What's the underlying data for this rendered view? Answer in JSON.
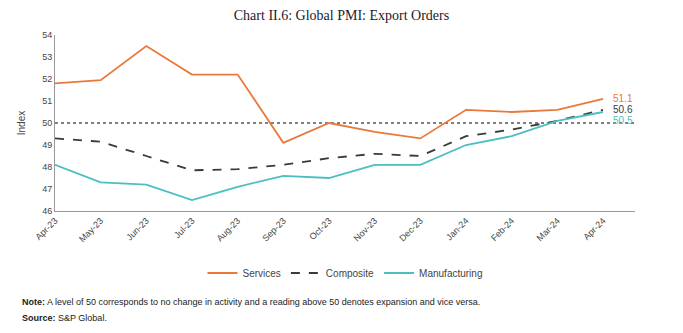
{
  "chart_data": {
    "type": "line",
    "title": "Chart II.6: Global PMI: Export Orders",
    "ylabel": "Index",
    "categories": [
      "Apr-23",
      "May-23",
      "Jun-23",
      "Jul-23",
      "Aug-23",
      "Sep-23",
      "Oct-23",
      "Nov-23",
      "Dec-23",
      "Jan-24",
      "Feb-24",
      "Mar-24",
      "Apr-24"
    ],
    "series": [
      {
        "name": "Services",
        "color": "#E8793A",
        "line_style": "solid",
        "values": [
          51.8,
          51.95,
          53.5,
          52.2,
          52.2,
          49.1,
          50.0,
          49.6,
          49.3,
          50.6,
          50.5,
          50.6,
          51.1
        ]
      },
      {
        "name": "Composite",
        "color": "#3a3a3a",
        "line_style": "dashed",
        "values": [
          49.3,
          49.15,
          48.5,
          47.85,
          47.9,
          48.1,
          48.4,
          48.6,
          48.5,
          49.4,
          49.7,
          50.1,
          50.6
        ]
      },
      {
        "name": "Manufacturing",
        "color": "#4BBFBF",
        "line_style": "solid",
        "values": [
          48.1,
          47.3,
          47.2,
          46.5,
          47.1,
          47.6,
          47.5,
          48.1,
          48.1,
          49.0,
          49.4,
          50.1,
          50.5
        ]
      }
    ],
    "reference_line": 50.0,
    "annotations": [
      {
        "text": "51.1",
        "x": "Apr-24",
        "y": 51.1,
        "color": "#E8793A"
      },
      {
        "text": "50.6",
        "x": "Apr-24",
        "y": 50.6,
        "color": "#3a3a3a"
      },
      {
        "text": "50.5",
        "x": "Apr-24",
        "y": 50.5,
        "color": "#4BBFBF"
      }
    ],
    "notes": [
      {
        "label": "Note:",
        "text": " A level of 50 corresponds to no change in activity and a reading above 50 denotes expansion and vice versa."
      },
      {
        "label": "Source:",
        "text": " S&P Global."
      }
    ],
    "ylim": [
      46,
      54
    ],
    "yticks": [
      46,
      47,
      48,
      49,
      50,
      51,
      52,
      53,
      54
    ],
    "grid": false,
    "legend": "bottom"
  }
}
